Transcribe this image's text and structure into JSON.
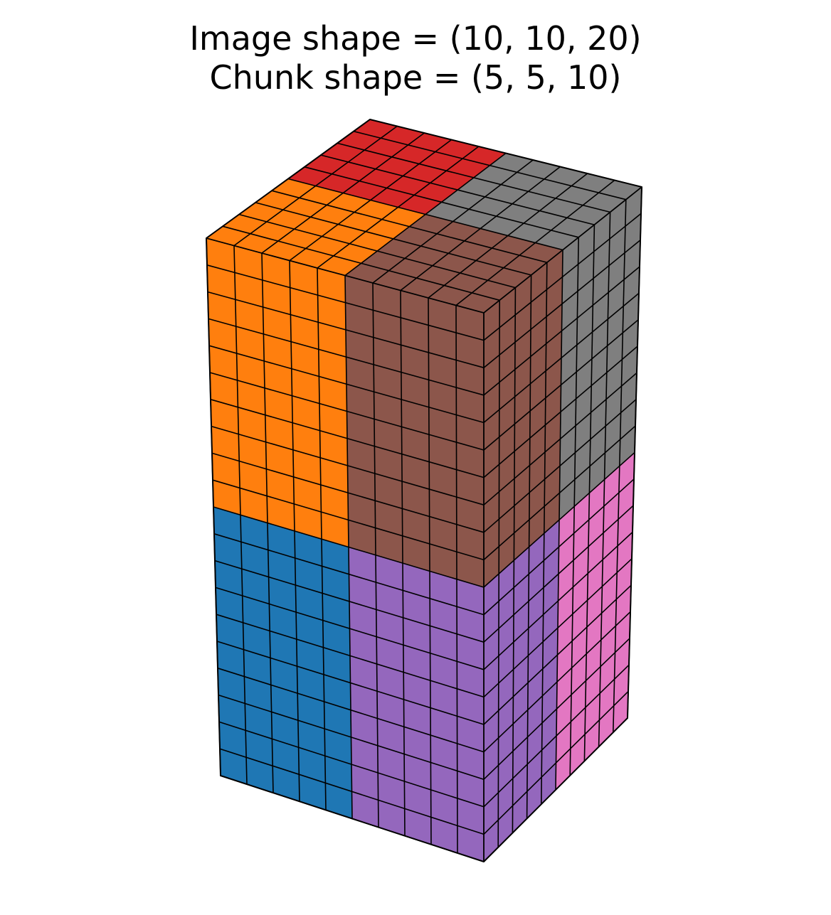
{
  "title": {
    "line1": "Image shape = (10, 10, 20)",
    "line2": "Chunk shape = (5, 5, 10)"
  },
  "image_shape": [
    10,
    10,
    20
  ],
  "chunk_shape": [
    5,
    5,
    10
  ],
  "colors": {
    "blue": "#1f77b4",
    "orange": "#ff7f0e",
    "purple": "#9467bd",
    "brown": "#8c564b",
    "pink": "#e377c2",
    "gray": "#7f7f7f",
    "red": "#d62728",
    "grid": "#000000"
  },
  "chunks": [
    {
      "name": "chunk-bottom-left",
      "color_key": "blue"
    },
    {
      "name": "chunk-bottom-front",
      "color_key": "purple"
    },
    {
      "name": "chunk-bottom-right",
      "color_key": "pink"
    },
    {
      "name": "chunk-top-left",
      "color_key": "orange"
    },
    {
      "name": "chunk-top-front",
      "color_key": "brown"
    },
    {
      "name": "chunk-top-right",
      "color_key": "gray"
    },
    {
      "name": "chunk-top-back",
      "color_key": "red"
    }
  ]
}
